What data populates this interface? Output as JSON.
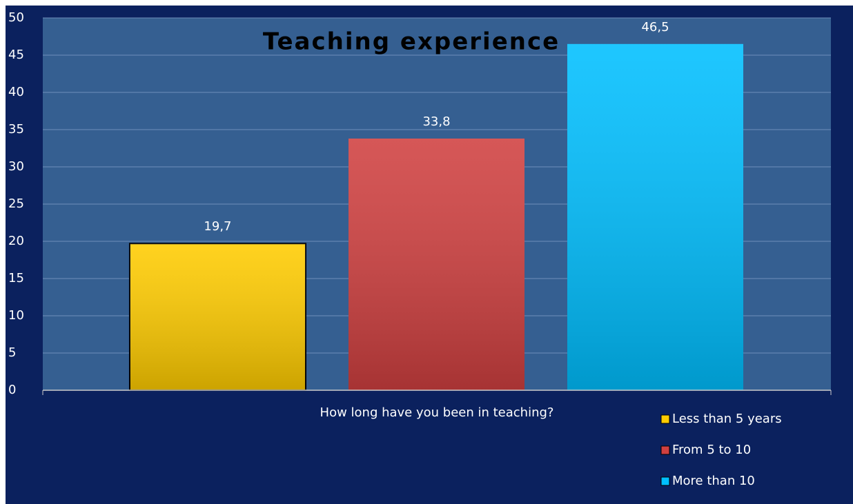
{
  "chart_data": {
    "type": "bar",
    "title": "Teaching experience",
    "categories": [
      "How long have you been in teaching?"
    ],
    "series": [
      {
        "name": "Less than 5 years",
        "color": "#ffcc00",
        "values": [
          19.7
        ],
        "value_labels": [
          "19,7"
        ]
      },
      {
        "name": "From 5 to 10",
        "color": "#d04040",
        "values": [
          33.8
        ],
        "value_labels": [
          "33,8"
        ]
      },
      {
        "name": "More than 10",
        "color": "#00bfff",
        "values": [
          46.5
        ],
        "value_labels": [
          "46,5"
        ]
      }
    ],
    "ylim": [
      0,
      50
    ],
    "yticks": [
      0,
      5,
      10,
      15,
      20,
      25,
      30,
      35,
      40,
      45,
      50
    ],
    "grid": true,
    "legend": "right"
  }
}
